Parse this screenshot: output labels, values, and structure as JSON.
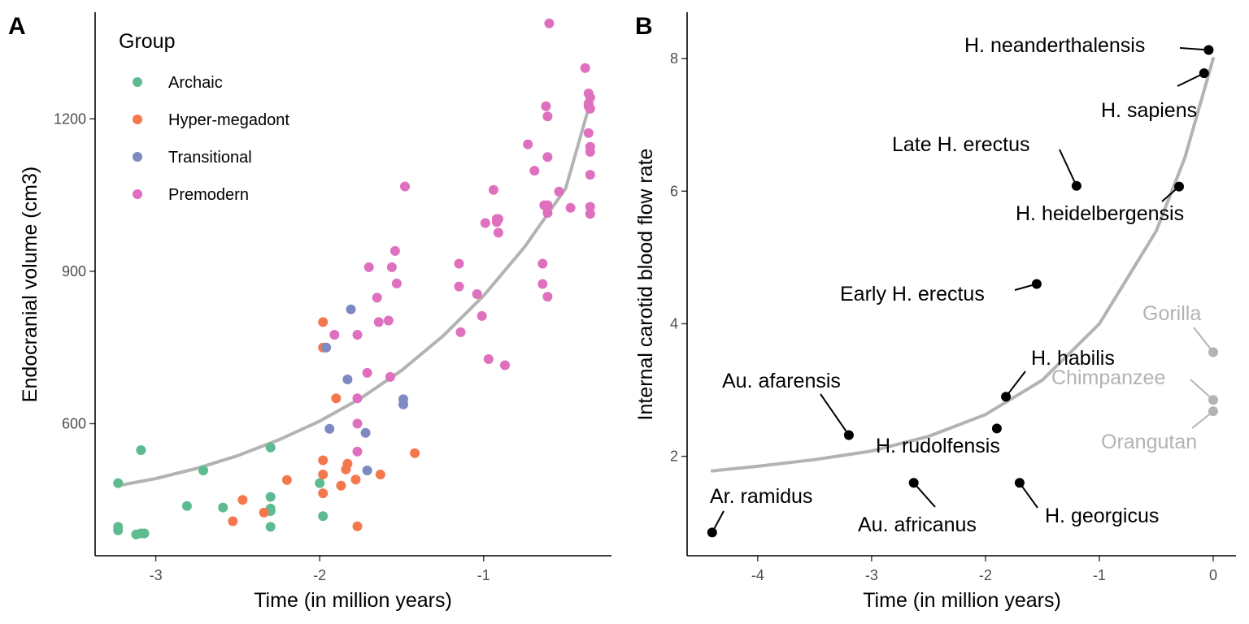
{
  "colors": {
    "archaic": "#5dbb8f",
    "hyper_megadont": "#f4784d",
    "transitional": "#7d8ac1",
    "premodern": "#df6fbf",
    "fit_line": "#b3b3b3",
    "species_point": "#000000",
    "ape_point": "#b3b3b3"
  },
  "chart_data": [
    {
      "panel_label": "A",
      "type": "scatter",
      "xlabel": "Time (in million years)",
      "ylabel": "Endocranial volume (cm3)",
      "xlim": [
        -3.37,
        -0.22
      ],
      "ylim": [
        340,
        1410
      ],
      "x_ticks": [
        -3,
        -2,
        -1
      ],
      "x_tick_labels": [
        "-3",
        "-2",
        "-1"
      ],
      "y_ticks": [
        600,
        900,
        1200
      ],
      "y_tick_labels": [
        "600",
        "900",
        "1200"
      ],
      "grid": false,
      "legend": {
        "title": "Group",
        "position": "top-left",
        "entries": [
          "Archaic",
          "Hyper-megadont",
          "Transitional",
          "Premodern"
        ]
      },
      "fit_curve": {
        "type": "exponential",
        "x": [
          -3.23,
          -3.0,
          -2.75,
          -2.5,
          -2.25,
          -2.0,
          -1.75,
          -1.5,
          -1.25,
          -1.0,
          -0.75,
          -0.5,
          -0.35
        ],
        "y": [
          478,
          492,
          512,
          537,
          568,
          605,
          650,
          705,
          772,
          852,
          948,
          1063,
          1232
        ]
      },
      "series": [
        {
          "name": "Archaic",
          "color_key": "archaic",
          "x": [
            -3.23,
            -3.23,
            -3.23,
            -3.09,
            -3.07,
            -3.09,
            -2.81,
            -2.71,
            -2.59,
            -2.3,
            -2.3,
            -2.3,
            -2.3,
            -2.3,
            -1.98,
            -2.0,
            -3.12
          ],
          "y": [
            483,
            397,
            390,
            548,
            384,
            384,
            438,
            508,
            435,
            553,
            456,
            433,
            428,
            397,
            418,
            483,
            382
          ]
        },
        {
          "name": "Hyper-megadont",
          "color_key": "hyper_megadont",
          "x": [
            -2.53,
            -2.47,
            -2.34,
            -2.2,
            -1.98,
            -1.98,
            -1.98,
            -1.98,
            -1.98,
            -1.9,
            -1.87,
            -1.84,
            -1.83,
            -1.78,
            -1.77,
            -1.63,
            -1.42
          ],
          "y": [
            408,
            450,
            425,
            489,
            800,
            750,
            528,
            500,
            463,
            650,
            478,
            510,
            521,
            490,
            398,
            500,
            542
          ]
        },
        {
          "name": "Transitional",
          "color_key": "transitional",
          "x": [
            -1.96,
            -1.94,
            -1.83,
            -1.81,
            -1.72,
            -1.71,
            -1.49,
            -1.49
          ],
          "y": [
            750,
            590,
            687,
            825,
            582,
            508,
            648,
            638
          ]
        },
        {
          "name": "Premodern",
          "color_key": "premodern",
          "x": [
            -1.91,
            -1.77,
            -1.77,
            -1.77,
            -1.77,
            -1.71,
            -1.7,
            -1.65,
            -1.64,
            -1.58,
            -1.57,
            -1.56,
            -1.54,
            -1.53,
            -1.48,
            -1.15,
            -1.15,
            -1.14,
            -1.04,
            -1.01,
            -0.99,
            -0.97,
            -0.94,
            -0.92,
            -0.92,
            -0.91,
            -0.91,
            -0.87,
            -0.73,
            -0.69,
            -0.64,
            -0.64,
            -0.63,
            -0.62,
            -0.61,
            -0.61,
            -0.61,
            -0.61,
            -0.61,
            -0.61,
            -0.6,
            -0.54,
            -0.47,
            -0.38,
            -0.36,
            -0.36,
            -0.36,
            -0.36,
            -0.35,
            -0.35,
            -0.35,
            -0.35,
            -0.35,
            -0.35,
            -0.35
          ],
          "y": [
            775,
            775,
            650,
            600,
            545,
            700,
            908,
            848,
            800,
            803,
            692,
            908,
            940,
            876,
            1067,
            915,
            870,
            780,
            855,
            812,
            995,
            727,
            1060,
            997,
            1003,
            976,
            1003,
            715,
            1150,
            1098,
            915,
            875,
            1030,
            1225,
            1205,
            1125,
            1030,
            1015,
            1028,
            850,
            1388,
            1057,
            1025,
            1300,
            1250,
            1230,
            1225,
            1172,
            1145,
            1135,
            1090,
            1027,
            1013,
            1242,
            1220
          ]
        }
      ]
    },
    {
      "panel_label": "B",
      "type": "scatter",
      "xlabel": "Time (in million years)",
      "ylabel": "Internal carotid blood flow rate",
      "xlim": [
        -4.62,
        0.2
      ],
      "ylim": [
        0.5,
        8.7
      ],
      "x_ticks": [
        -4,
        -3,
        -2,
        -1,
        0
      ],
      "x_tick_labels": [
        "-4",
        "-3",
        "-2",
        "-1",
        "0"
      ],
      "y_ticks": [
        2,
        4,
        6,
        8
      ],
      "y_tick_labels": [
        "2",
        "4",
        "6",
        "8"
      ],
      "grid": false,
      "fit_curve": {
        "type": "exponential",
        "x": [
          -4.4,
          -4.0,
          -3.5,
          -3.0,
          -2.5,
          -2.0,
          -1.5,
          -1.0,
          -0.5,
          -0.25,
          0.0
        ],
        "y": [
          1.78,
          1.85,
          1.95,
          2.08,
          2.3,
          2.63,
          3.15,
          4.0,
          5.4,
          6.5,
          8.0
        ]
      },
      "points": [
        {
          "label": "Ar. ramidus",
          "x": -4.4,
          "y": 0.85,
          "color_key": "species_point"
        },
        {
          "label": "Au. afarensis",
          "x": -3.2,
          "y": 2.32,
          "color_key": "species_point"
        },
        {
          "label": "Au. africanus",
          "x": -2.63,
          "y": 1.6,
          "color_key": "species_point"
        },
        {
          "label": "H. rudolfensis",
          "x": -1.9,
          "y": 2.42,
          "color_key": "species_point"
        },
        {
          "label": "H. habilis",
          "x": -1.82,
          "y": 2.9,
          "color_key": "species_point"
        },
        {
          "label": "H. georgicus",
          "x": -1.7,
          "y": 1.6,
          "color_key": "species_point"
        },
        {
          "label": "Early H. erectus",
          "x": -1.55,
          "y": 4.6,
          "color_key": "species_point"
        },
        {
          "label": "Late H. erectus",
          "x": -1.2,
          "y": 6.08,
          "color_key": "species_point"
        },
        {
          "label": "H. heidelbergensis",
          "x": -0.3,
          "y": 6.07,
          "color_key": "species_point"
        },
        {
          "label": "H. sapiens",
          "x": -0.08,
          "y": 7.78,
          "color_key": "species_point"
        },
        {
          "label": "H. neanderthalensis",
          "x": -0.04,
          "y": 8.13,
          "color_key": "species_point"
        },
        {
          "label": "Gorilla",
          "x": 0.0,
          "y": 3.57,
          "color_key": "ape_point"
        },
        {
          "label": "Chimpanzee",
          "x": 0.0,
          "y": 2.85,
          "color_key": "ape_point"
        },
        {
          "label": "Orangutan",
          "x": 0.0,
          "y": 2.68,
          "color_key": "ape_point"
        }
      ]
    }
  ]
}
